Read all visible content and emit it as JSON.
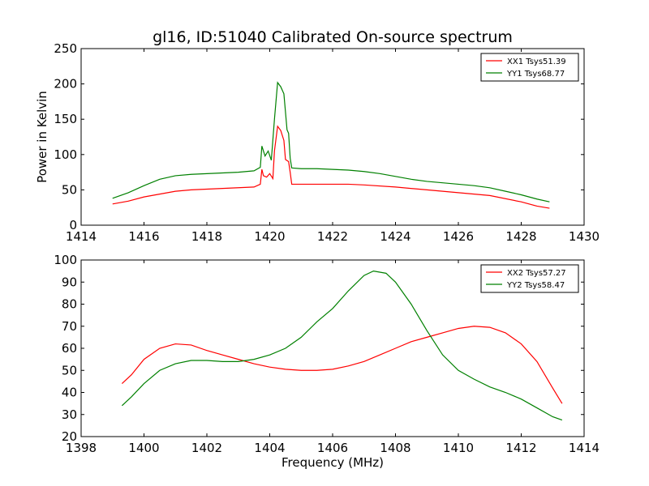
{
  "chart_data": [
    {
      "type": "line",
      "title": "gl16, ID:51040 Calibrated On-source spectrum",
      "xlabel": "",
      "ylabel": "Power in Kelvin",
      "xlim": [
        1414,
        1430
      ],
      "ylim": [
        0,
        250
      ],
      "xticks": [
        1414,
        1416,
        1418,
        1420,
        1422,
        1424,
        1426,
        1428,
        1430
      ],
      "yticks": [
        0,
        50,
        100,
        150,
        200,
        250
      ],
      "grid": false,
      "legend_position": "top-right",
      "series": [
        {
          "name": "XX1 Tsys51.39",
          "color": "#ff0000",
          "points": [
            [
              1415.0,
              30
            ],
            [
              1415.5,
              34
            ],
            [
              1416.0,
              40
            ],
            [
              1416.5,
              44
            ],
            [
              1417.0,
              48
            ],
            [
              1417.5,
              50
            ],
            [
              1418.0,
              51
            ],
            [
              1418.5,
              52
            ],
            [
              1419.0,
              53
            ],
            [
              1419.5,
              54
            ],
            [
              1419.7,
              58
            ],
            [
              1419.75,
              79
            ],
            [
              1419.8,
              70
            ],
            [
              1419.9,
              68
            ],
            [
              1420.0,
              73
            ],
            [
              1420.1,
              66
            ],
            [
              1420.15,
              105
            ],
            [
              1420.25,
              140
            ],
            [
              1420.35,
              134
            ],
            [
              1420.45,
              120
            ],
            [
              1420.5,
              93
            ],
            [
              1420.6,
              90
            ],
            [
              1420.65,
              75
            ],
            [
              1420.7,
              58
            ],
            [
              1421.0,
              58
            ],
            [
              1422.0,
              58
            ],
            [
              1422.5,
              58
            ],
            [
              1423.0,
              57
            ],
            [
              1424.0,
              54
            ],
            [
              1425.0,
              50
            ],
            [
              1426.0,
              46
            ],
            [
              1427.0,
              42
            ],
            [
              1428.0,
              33
            ],
            [
              1428.5,
              27
            ],
            [
              1428.9,
              24
            ]
          ]
        },
        {
          "name": "YY1 Tsys68.77",
          "color": "#008000",
          "points": [
            [
              1415.0,
              38
            ],
            [
              1415.5,
              46
            ],
            [
              1416.0,
              56
            ],
            [
              1416.5,
              65
            ],
            [
              1417.0,
              70
            ],
            [
              1417.5,
              72
            ],
            [
              1418.0,
              73
            ],
            [
              1418.5,
              74
            ],
            [
              1419.0,
              75
            ],
            [
              1419.5,
              77
            ],
            [
              1419.7,
              82
            ],
            [
              1419.75,
              112
            ],
            [
              1419.85,
              98
            ],
            [
              1419.95,
              105
            ],
            [
              1420.05,
              92
            ],
            [
              1420.15,
              150
            ],
            [
              1420.25,
              202
            ],
            [
              1420.35,
              196
            ],
            [
              1420.45,
              186
            ],
            [
              1420.55,
              135
            ],
            [
              1420.6,
              130
            ],
            [
              1420.65,
              95
            ],
            [
              1420.7,
              81
            ],
            [
              1421.0,
              80
            ],
            [
              1421.5,
              80
            ],
            [
              1422.0,
              79
            ],
            [
              1422.5,
              78
            ],
            [
              1423.0,
              76
            ],
            [
              1423.5,
              73
            ],
            [
              1424.0,
              69
            ],
            [
              1424.5,
              65
            ],
            [
              1425.0,
              62
            ],
            [
              1426.0,
              58
            ],
            [
              1426.5,
              56
            ],
            [
              1427.0,
              53
            ],
            [
              1427.5,
              48
            ],
            [
              1428.0,
              43
            ],
            [
              1428.5,
              37
            ],
            [
              1428.9,
              33
            ]
          ]
        }
      ]
    },
    {
      "type": "line",
      "title": "",
      "xlabel": "Frequency (MHz)",
      "ylabel": "",
      "xlim": [
        1398,
        1414
      ],
      "ylim": [
        20,
        100
      ],
      "xticks": [
        1398,
        1400,
        1402,
        1404,
        1406,
        1408,
        1410,
        1412,
        1414
      ],
      "yticks": [
        20,
        30,
        40,
        50,
        60,
        70,
        80,
        90,
        100
      ],
      "grid": false,
      "legend_position": "top-right",
      "series": [
        {
          "name": "XX2 Tsys57.27",
          "color": "#ff0000",
          "points": [
            [
              1399.3,
              44
            ],
            [
              1399.6,
              48
            ],
            [
              1400.0,
              55
            ],
            [
              1400.5,
              60
            ],
            [
              1401.0,
              62
            ],
            [
              1401.5,
              61.5
            ],
            [
              1402.0,
              59
            ],
            [
              1402.5,
              57
            ],
            [
              1403.0,
              55
            ],
            [
              1403.5,
              53
            ],
            [
              1404.0,
              51.5
            ],
            [
              1404.5,
              50.5
            ],
            [
              1405.0,
              50
            ],
            [
              1405.5,
              50
            ],
            [
              1406.0,
              50.5
            ],
            [
              1406.5,
              52
            ],
            [
              1407.0,
              54
            ],
            [
              1407.5,
              57
            ],
            [
              1408.0,
              60
            ],
            [
              1408.5,
              63
            ],
            [
              1409.0,
              65
            ],
            [
              1409.5,
              67
            ],
            [
              1410.0,
              69
            ],
            [
              1410.5,
              70
            ],
            [
              1411.0,
              69.5
            ],
            [
              1411.5,
              67
            ],
            [
              1412.0,
              62
            ],
            [
              1412.5,
              54
            ],
            [
              1413.0,
              42
            ],
            [
              1413.3,
              35
            ]
          ]
        },
        {
          "name": "YY2 Tsys58.47",
          "color": "#008000",
          "points": [
            [
              1399.3,
              34
            ],
            [
              1399.6,
              38
            ],
            [
              1400.0,
              44
            ],
            [
              1400.5,
              50
            ],
            [
              1401.0,
              53
            ],
            [
              1401.5,
              54.5
            ],
            [
              1402.0,
              54.5
            ],
            [
              1402.5,
              54
            ],
            [
              1403.0,
              54
            ],
            [
              1403.5,
              55
            ],
            [
              1404.0,
              57
            ],
            [
              1404.5,
              60
            ],
            [
              1405.0,
              65
            ],
            [
              1405.5,
              72
            ],
            [
              1406.0,
              78
            ],
            [
              1406.5,
              86
            ],
            [
              1407.0,
              93
            ],
            [
              1407.3,
              95
            ],
            [
              1407.7,
              94
            ],
            [
              1408.0,
              90
            ],
            [
              1408.5,
              80
            ],
            [
              1409.0,
              68
            ],
            [
              1409.5,
              57
            ],
            [
              1410.0,
              50
            ],
            [
              1410.5,
              46
            ],
            [
              1411.0,
              42.5
            ],
            [
              1411.5,
              40
            ],
            [
              1412.0,
              37
            ],
            [
              1412.5,
              33
            ],
            [
              1413.0,
              29
            ],
            [
              1413.3,
              27.5
            ]
          ]
        }
      ]
    }
  ]
}
